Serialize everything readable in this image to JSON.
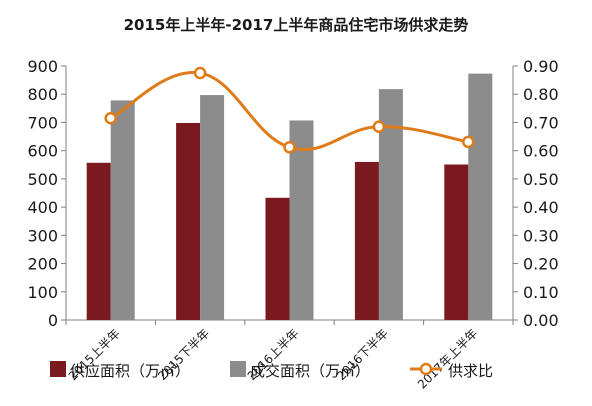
{
  "chart_data": {
    "type": "bar",
    "title": "2015年上半年-2017上半年商品住宅市场供求走势",
    "categories": [
      "2015上半年",
      "2015下半年",
      "2016上半年",
      "2016下半年",
      "2017年上半年"
    ],
    "series": [
      {
        "name": "供应面积（万㎡）",
        "type": "bar",
        "axis": "left",
        "color": "#7a1a1e",
        "values": [
          557,
          698,
          433,
          560,
          551
        ]
      },
      {
        "name": "成交面积（万㎡）",
        "type": "bar",
        "axis": "left",
        "color": "#8c8c8c",
        "values": [
          778,
          797,
          707,
          818,
          873
        ]
      },
      {
        "name": "供求比",
        "type": "line",
        "axis": "right",
        "color": "#e07b1a",
        "values": [
          0.715,
          0.875,
          0.612,
          0.685,
          0.631
        ]
      }
    ],
    "y_left": {
      "min": 0,
      "max": 900,
      "step": 100,
      "tick_labels": [
        "0",
        "100",
        "200",
        "300",
        "400",
        "500",
        "600",
        "700",
        "800",
        "900"
      ]
    },
    "y_right": {
      "min": 0,
      "max": 0.9,
      "step": 0.1,
      "tick_labels": [
        "0.00",
        "0.10",
        "0.20",
        "0.30",
        "0.40",
        "0.50",
        "0.60",
        "0.70",
        "0.80",
        "0.90"
      ]
    },
    "grid": false,
    "legend": "bottom",
    "xlabel": "",
    "ylabel": ""
  }
}
